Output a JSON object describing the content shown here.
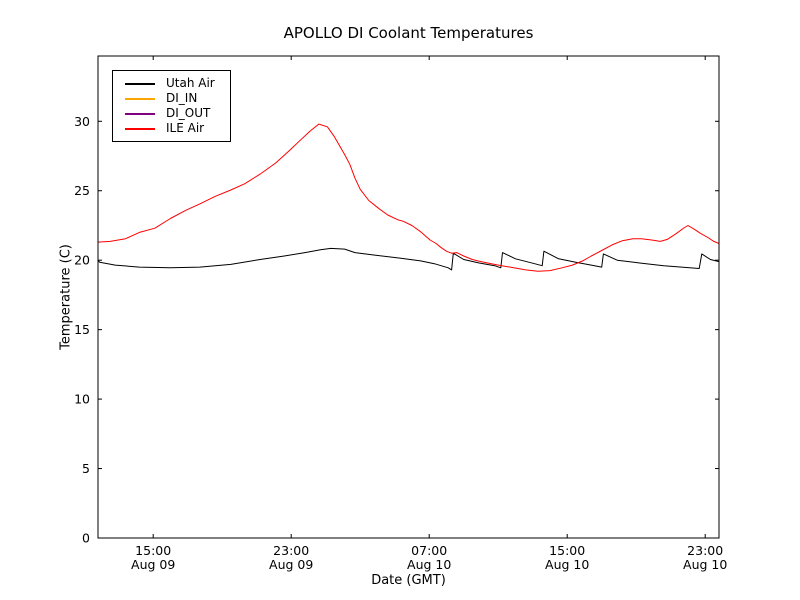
{
  "chart_data": {
    "type": "line",
    "title": "APOLLO DI Coolant Temperatures",
    "xlabel": "Date (GMT)",
    "ylabel": "Temperature (C)",
    "x_unit": "hours since Aug 09 00:00 GMT",
    "xlim": [
      11.8,
      47.8
    ],
    "ylim": [
      0,
      34.7
    ],
    "yticks": [
      0,
      5,
      10,
      15,
      20,
      25,
      30
    ],
    "xticks": [
      {
        "value": 15,
        "time": "15:00",
        "date": "Aug 09"
      },
      {
        "value": 23,
        "time": "23:00",
        "date": "Aug 09"
      },
      {
        "value": 31,
        "time": "07:00",
        "date": "Aug 10"
      },
      {
        "value": 39,
        "time": "15:00",
        "date": "Aug 10"
      },
      {
        "value": 47,
        "time": "23:00",
        "date": "Aug 10"
      }
    ],
    "grid": false,
    "legend_position": "upper-left",
    "colors": {
      "frame": "#000000",
      "text": "#000000",
      "background": "#ffffff"
    },
    "series": [
      {
        "name": "Utah Air",
        "color": "#000000",
        "points": [
          [
            11.8,
            20.0
          ],
          [
            11.9,
            19.85
          ],
          [
            12.8,
            19.65
          ],
          [
            14.2,
            19.5
          ],
          [
            16.0,
            19.45
          ],
          [
            17.7,
            19.5
          ],
          [
            19.5,
            19.7
          ],
          [
            21.2,
            20.05
          ],
          [
            22.6,
            20.3
          ],
          [
            23.8,
            20.55
          ],
          [
            24.7,
            20.75
          ],
          [
            25.3,
            20.85
          ],
          [
            26.1,
            20.8
          ],
          [
            26.7,
            20.55
          ],
          [
            27.9,
            20.35
          ],
          [
            29.3,
            20.15
          ],
          [
            30.5,
            19.95
          ],
          [
            31.3,
            19.75
          ],
          [
            32.1,
            19.45
          ],
          [
            32.3,
            19.3
          ],
          [
            32.4,
            20.5
          ],
          [
            33.0,
            20.05
          ],
          [
            33.9,
            19.8
          ],
          [
            34.8,
            19.6
          ],
          [
            35.15,
            19.45
          ],
          [
            35.25,
            20.55
          ],
          [
            36.0,
            20.1
          ],
          [
            36.8,
            19.85
          ],
          [
            37.55,
            19.6
          ],
          [
            37.65,
            20.65
          ],
          [
            38.5,
            20.1
          ],
          [
            39.5,
            19.85
          ],
          [
            40.4,
            19.65
          ],
          [
            41.0,
            19.5
          ],
          [
            41.1,
            20.45
          ],
          [
            41.9,
            20.0
          ],
          [
            43.2,
            19.8
          ],
          [
            44.6,
            19.6
          ],
          [
            46.1,
            19.45
          ],
          [
            46.65,
            19.4
          ],
          [
            46.8,
            20.45
          ],
          [
            47.3,
            20.05
          ],
          [
            47.8,
            19.9
          ]
        ]
      },
      {
        "name": "DI_IN",
        "color": "#ffa500",
        "points": []
      },
      {
        "name": "DI_OUT",
        "color": "#800080",
        "points": []
      },
      {
        "name": "ILE Air",
        "color": "#ff0000",
        "points": [
          [
            11.8,
            21.3
          ],
          [
            12.5,
            21.35
          ],
          [
            13.4,
            21.55
          ],
          [
            14.2,
            22.0
          ],
          [
            15.1,
            22.3
          ],
          [
            16.0,
            23.0
          ],
          [
            16.9,
            23.6
          ],
          [
            17.7,
            24.05
          ],
          [
            18.6,
            24.6
          ],
          [
            19.5,
            25.05
          ],
          [
            20.3,
            25.5
          ],
          [
            21.2,
            26.2
          ],
          [
            22.1,
            27.0
          ],
          [
            22.9,
            27.9
          ],
          [
            23.5,
            28.6
          ],
          [
            24.1,
            29.3
          ],
          [
            24.6,
            29.8
          ],
          [
            25.1,
            29.6
          ],
          [
            25.5,
            28.9
          ],
          [
            26.1,
            27.6
          ],
          [
            26.4,
            26.9
          ],
          [
            26.7,
            25.9
          ],
          [
            27.0,
            25.1
          ],
          [
            27.5,
            24.3
          ],
          [
            28.1,
            23.7
          ],
          [
            28.6,
            23.25
          ],
          [
            29.2,
            22.9
          ],
          [
            29.5,
            22.8
          ],
          [
            30.0,
            22.5
          ],
          [
            30.5,
            22.05
          ],
          [
            31.05,
            21.45
          ],
          [
            31.4,
            21.2
          ],
          [
            31.7,
            20.9
          ],
          [
            32.0,
            20.65
          ],
          [
            32.3,
            20.5
          ],
          [
            32.6,
            20.55
          ],
          [
            33.0,
            20.3
          ],
          [
            33.5,
            20.05
          ],
          [
            34.0,
            19.9
          ],
          [
            34.6,
            19.75
          ],
          [
            35.2,
            19.6
          ],
          [
            35.9,
            19.45
          ],
          [
            36.6,
            19.3
          ],
          [
            37.3,
            19.2
          ],
          [
            38.0,
            19.25
          ],
          [
            38.7,
            19.45
          ],
          [
            39.3,
            19.65
          ],
          [
            39.9,
            19.95
          ],
          [
            40.4,
            20.3
          ],
          [
            41.0,
            20.7
          ],
          [
            41.6,
            21.1
          ],
          [
            42.2,
            21.4
          ],
          [
            42.8,
            21.55
          ],
          [
            43.3,
            21.55
          ],
          [
            43.9,
            21.45
          ],
          [
            44.4,
            21.35
          ],
          [
            44.8,
            21.5
          ],
          [
            45.3,
            21.9
          ],
          [
            45.8,
            22.35
          ],
          [
            46.0,
            22.5
          ],
          [
            46.4,
            22.2
          ],
          [
            46.7,
            21.95
          ],
          [
            47.2,
            21.6
          ],
          [
            47.5,
            21.35
          ],
          [
            47.8,
            21.2
          ]
        ]
      }
    ]
  }
}
